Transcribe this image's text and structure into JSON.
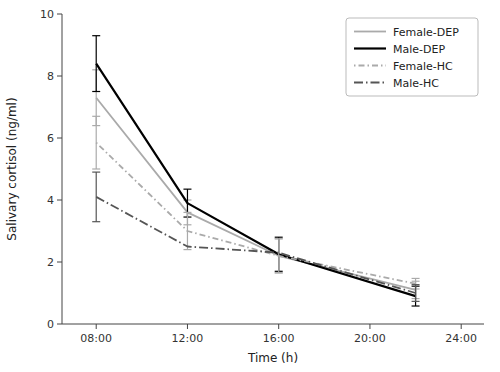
{
  "chart_data": {
    "type": "line",
    "x_label": "Time (h)",
    "y_label": "Salivary cortisol (ng/ml)",
    "x": [
      8,
      12,
      16,
      22
    ],
    "xlim": [
      6.5,
      25
    ],
    "xticks": [
      {
        "value": 8,
        "label": "08:00"
      },
      {
        "value": 12,
        "label": "12:00"
      },
      {
        "value": 16,
        "label": "16:00"
      },
      {
        "value": 20,
        "label": "20:00"
      },
      {
        "value": 24,
        "label": "24:00"
      }
    ],
    "ylim": [
      0,
      10
    ],
    "yticks": [
      0,
      2,
      4,
      6,
      8,
      10
    ],
    "legend": "upper right",
    "series": [
      {
        "name": "Female-DEP",
        "color": "#aaaaaa",
        "line_style": "solid",
        "values": [
          7.3,
          3.6,
          2.2,
          1.1
        ],
        "errors": [
          0.9,
          0.4,
          0.55,
          0.28
        ]
      },
      {
        "name": "Male-DEP",
        "color": "#000000",
        "line_style": "solid",
        "values": [
          8.4,
          3.9,
          2.25,
          0.9
        ],
        "errors": [
          0.9,
          0.45,
          0.55,
          0.32
        ]
      },
      {
        "name": "Female-HC",
        "color": "#aaaaaa",
        "line_style": "dotdash",
        "values": [
          5.85,
          3.0,
          2.2,
          1.3
        ],
        "errors": [
          0.85,
          0.6,
          0.55,
          0.17
        ]
      },
      {
        "name": "Male-HC",
        "color": "#555555",
        "line_style": "dashdot",
        "values": [
          4.1,
          2.5,
          2.3,
          1.0
        ],
        "errors": [
          0.8,
          0.0,
          0.0,
          0.27
        ]
      }
    ]
  }
}
